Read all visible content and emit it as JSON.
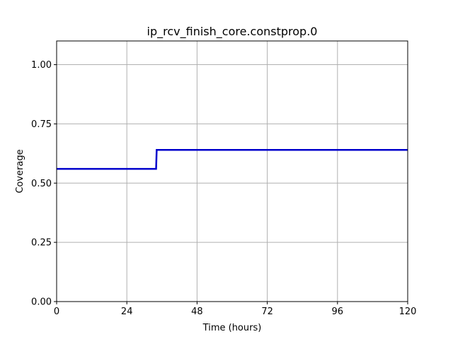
{
  "chart_data": {
    "type": "line",
    "title": "ip_rcv_finish_core.constprop.0",
    "xlabel": "Time (hours)",
    "ylabel": "Coverage",
    "xlim": [
      0,
      120
    ],
    "ylim": [
      0,
      1.1
    ],
    "x_ticks": [
      0,
      24,
      48,
      72,
      96,
      120
    ],
    "x_tick_labels": [
      "0",
      "24",
      "48",
      "72",
      "96",
      "120"
    ],
    "y_ticks": [
      0,
      0.25,
      0.5,
      0.75,
      1.0
    ],
    "y_tick_labels": [
      "0.00",
      "0.25",
      "0.50",
      "0.75",
      "1.00"
    ],
    "grid": true,
    "series": [
      {
        "color": "#0000cc",
        "x": [
          0,
          34,
          34.2,
          120
        ],
        "y": [
          0.56,
          0.56,
          0.64,
          0.64
        ]
      }
    ]
  }
}
